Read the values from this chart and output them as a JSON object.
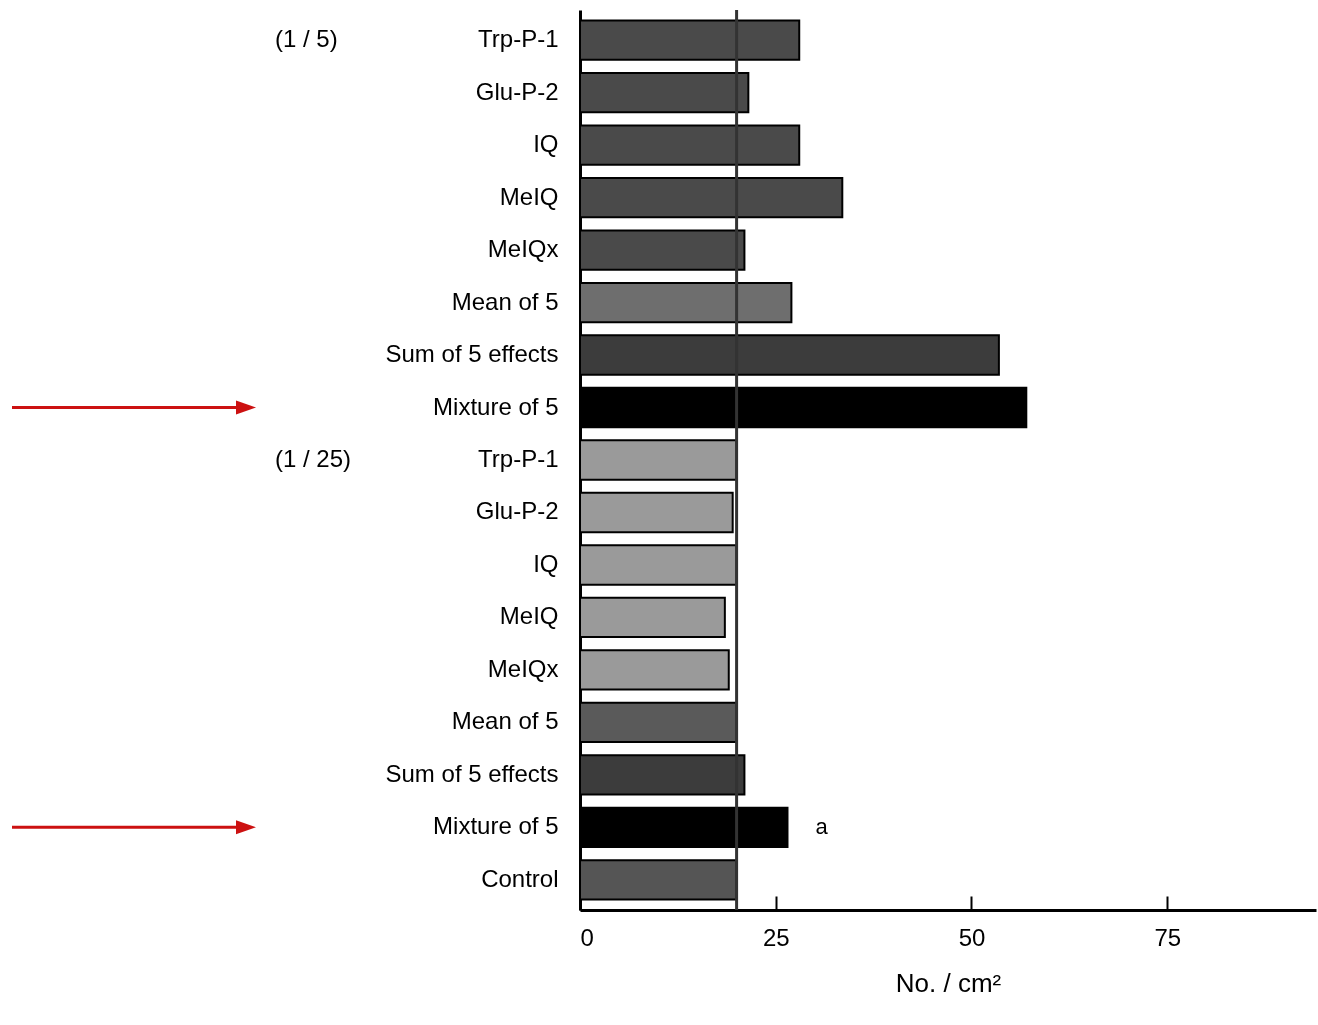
{
  "chart_data": {
    "type": "bar",
    "orientation": "horizontal",
    "xlabel": "No. / cm²",
    "categories": [
      "Trp-P-1",
      "Glu-P-2",
      "IQ",
      "MeIQ",
      "MeIQx",
      "Mean of 5",
      "Sum of 5 effects",
      "Mixture of 5",
      "Trp-P-1",
      "Glu-P-2",
      "IQ",
      "MeIQ",
      "MeIQx",
      "Mean of 5",
      "Sum of 5 effects",
      "Mixture of 5",
      "Control"
    ],
    "values": [
      28,
      21.5,
      28,
      33.5,
      21,
      27,
      53.5,
      57,
      20,
      19.5,
      20,
      18.5,
      19,
      20,
      21,
      26.5,
      20
    ],
    "colors": [
      "#4a4a4a",
      "#4a4a4a",
      "#4a4a4a",
      "#4a4a4a",
      "#4a4a4a",
      "#6e6e6e",
      "#3c3c3c",
      "#000000",
      "#9a9a9a",
      "#9a9a9a",
      "#9a9a9a",
      "#9a9a9a",
      "#9a9a9a",
      "#5a5a5a",
      "#3c3c3c",
      "#000000",
      "#555555"
    ],
    "xlim": [
      0,
      94
    ],
    "xticks": [
      0,
      25,
      50,
      75
    ],
    "ref_lines": [
      {
        "axis": "x",
        "value": 20,
        "color": "#333333"
      }
    ],
    "annotations": [
      "(1 / 5)",
      "(1 / 25)",
      "a"
    ]
  }
}
